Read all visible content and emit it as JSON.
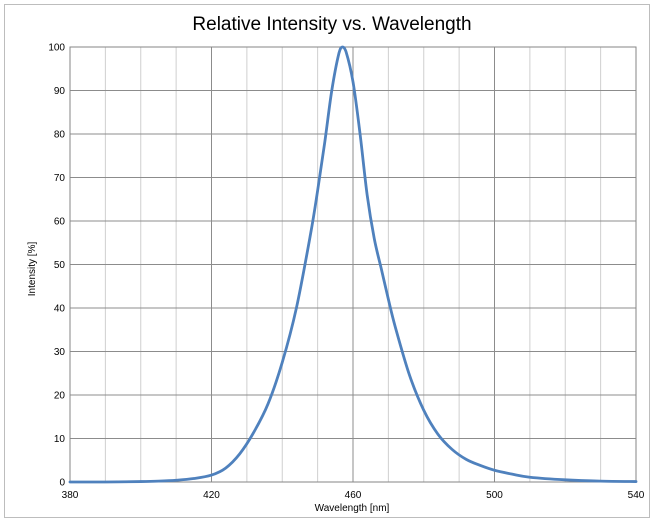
{
  "chart_data": {
    "type": "line",
    "title": "Relative Intensity vs. Wavelength",
    "xlabel": "Wavelength  [nm]",
    "ylabel": "Intensity [%]",
    "xlim": [
      380,
      540
    ],
    "ylim": [
      0,
      100
    ],
    "x_major_ticks": [
      380,
      420,
      460,
      500,
      540
    ],
    "x_minor_step": 10,
    "y_ticks": [
      0,
      10,
      20,
      30,
      40,
      50,
      60,
      70,
      80,
      90,
      100
    ],
    "grid": true,
    "legend": "none",
    "series": [
      {
        "color": "#4f81bd",
        "x": [
          380,
          390,
          400,
          405,
          410,
          415,
          420,
          424,
          428,
          432,
          436,
          440,
          444,
          448,
          450,
          452,
          454,
          456,
          457,
          458,
          460,
          462,
          464,
          466,
          468,
          470,
          472,
          476,
          480,
          484,
          488,
          492,
          496,
          500,
          505,
          510,
          520,
          530,
          540
        ],
        "y": [
          0,
          0,
          0.1,
          0.2,
          0.4,
          0.8,
          1.6,
          3.2,
          6.5,
          11.5,
          18,
          27.5,
          40,
          57,
          67,
          78,
          90,
          98.5,
          100,
          99,
          92,
          80,
          66,
          56,
          49,
          42,
          35.5,
          24.5,
          16.5,
          11,
          7.5,
          5.2,
          3.8,
          2.7,
          1.8,
          1.1,
          0.5,
          0.2,
          0.1
        ]
      }
    ]
  }
}
